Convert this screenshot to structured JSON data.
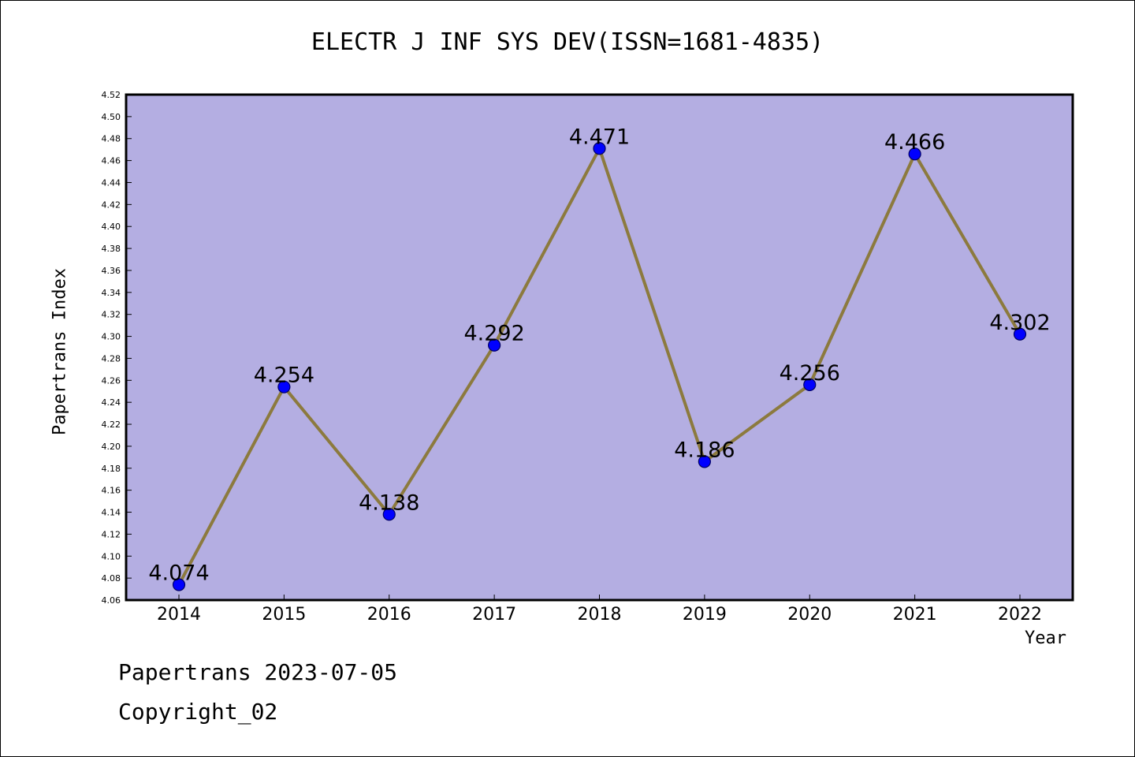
{
  "chart_data": {
    "type": "line",
    "title": "ELECTR J INF SYS DEV(ISSN=1681-4835)",
    "xlabel": "Year",
    "ylabel": "Papertrans Index",
    "categories": [
      "2014",
      "2015",
      "2016",
      "2017",
      "2018",
      "2019",
      "2020",
      "2021",
      "2022"
    ],
    "values": [
      4.074,
      4.254,
      4.138,
      4.292,
      4.471,
      4.186,
      4.256,
      4.466,
      4.302
    ],
    "data_labels": [
      "4.074",
      "4.254",
      "4.138",
      "4.292",
      "4.471",
      "4.186",
      "4.256",
      "4.466",
      "4.302"
    ],
    "ylim": [
      4.06,
      4.52
    ],
    "yticks": [
      "4.06",
      "4.08",
      "4.10",
      "4.12",
      "4.14",
      "4.16",
      "4.18",
      "4.20",
      "4.22",
      "4.24",
      "4.26",
      "4.28",
      "4.30",
      "4.32",
      "4.34",
      "4.36",
      "4.38",
      "4.40",
      "4.42",
      "4.44",
      "4.46",
      "4.48",
      "4.50",
      "4.52"
    ],
    "grid": false,
    "colors": {
      "plot_background": "#b4aee2",
      "line": "#8c7a3e",
      "marker": "#0000ff",
      "marker_edge": "#000066"
    }
  },
  "footer": {
    "line1": "Papertrans 2023-07-05",
    "line2": "Copyright_02"
  }
}
